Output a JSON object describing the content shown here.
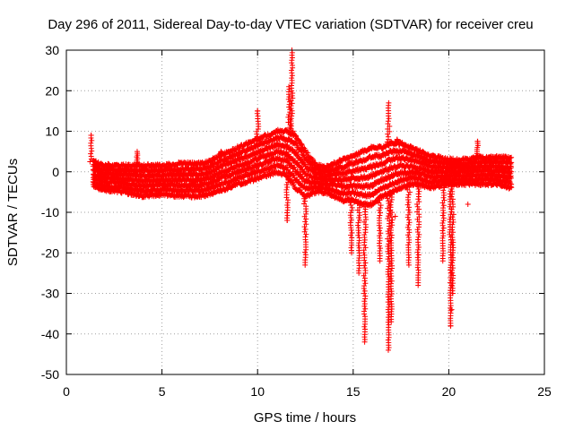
{
  "chart_data": {
    "type": "scatter",
    "title": "Day 296 of 2011, Sidereal Day-to-day VTEC variation (SDTVAR) for receiver creu",
    "xlabel": "GPS time / hours",
    "ylabel": "SDTVAR / TECUs",
    "xlim": [
      0,
      25
    ],
    "ylim": [
      -50,
      30
    ],
    "xticks": [
      0,
      5,
      10,
      15,
      20,
      25
    ],
    "yticks": [
      30,
      20,
      10,
      0,
      -10,
      -20,
      -30,
      -40,
      -50
    ],
    "grid": true,
    "marker": "+",
    "color": "#ff0000",
    "series": [
      {
        "name": "SDTVAR",
        "band": [
          [
            1.4,
            2.5,
            -3.5
          ],
          [
            2.0,
            1.5,
            -4.5
          ],
          [
            3.0,
            1.5,
            -5.0
          ],
          [
            4.0,
            1.5,
            -6.0
          ],
          [
            5.0,
            1.5,
            -5.5
          ],
          [
            6.0,
            2.0,
            -6.0
          ],
          [
            7.0,
            2.0,
            -6.0
          ],
          [
            7.5,
            2.5,
            -5.5
          ],
          [
            8.0,
            4.0,
            -4.5
          ],
          [
            8.5,
            5.0,
            -4.0
          ],
          [
            9.0,
            6.0,
            -3.0
          ],
          [
            9.5,
            7.0,
            -2.5
          ],
          [
            10.0,
            8.0,
            -1.5
          ],
          [
            10.5,
            9.0,
            -1.0
          ],
          [
            11.0,
            10.0,
            0.0
          ],
          [
            11.5,
            10.0,
            -1.0
          ],
          [
            12.0,
            9.0,
            -4.0
          ],
          [
            12.5,
            5.0,
            -6.0
          ],
          [
            13.0,
            2.0,
            -5.0
          ],
          [
            13.5,
            1.0,
            -5.0
          ],
          [
            14.0,
            2.0,
            -6.0
          ],
          [
            14.5,
            3.0,
            -7.0
          ],
          [
            15.0,
            4.0,
            -7.0
          ],
          [
            15.5,
            5.0,
            -8.0
          ],
          [
            16.0,
            6.0,
            -8.0
          ],
          [
            16.5,
            6.0,
            -6.0
          ],
          [
            17.0,
            7.0,
            -5.0
          ],
          [
            17.5,
            7.0,
            -4.0
          ],
          [
            18.0,
            6.0,
            -3.0
          ],
          [
            18.5,
            5.0,
            -3.0
          ],
          [
            19.0,
            4.0,
            -4.0
          ],
          [
            19.5,
            3.5,
            -3.5
          ],
          [
            20.0,
            3.0,
            -3.0
          ],
          [
            20.5,
            3.0,
            -3.0
          ],
          [
            21.0,
            3.0,
            -3.0
          ],
          [
            21.5,
            3.5,
            -3.0
          ],
          [
            22.0,
            3.5,
            -3.0
          ],
          [
            22.5,
            3.5,
            -3.0
          ],
          [
            23.3,
            3.5,
            -4.0
          ]
        ],
        "spikes": [
          [
            11.8,
            30
          ],
          [
            11.65,
            21
          ],
          [
            16.85,
            17
          ],
          [
            17.3,
            8
          ],
          [
            21.5,
            7.5
          ],
          [
            3.7,
            5
          ],
          [
            2.2,
            2
          ],
          [
            8.1,
            5
          ],
          [
            10.0,
            15
          ],
          [
            1.3,
            9
          ]
        ],
        "dips": [
          [
            11.55,
            -12
          ],
          [
            12.5,
            -23
          ],
          [
            14.9,
            -20
          ],
          [
            15.6,
            -42
          ],
          [
            15.3,
            -25
          ],
          [
            16.85,
            -44
          ],
          [
            17.0,
            -37
          ],
          [
            18.4,
            -28
          ],
          [
            17.9,
            -23
          ],
          [
            20.1,
            -38
          ],
          [
            19.7,
            -22
          ],
          [
            16.4,
            -22
          ],
          [
            20.2,
            -30
          ]
        ],
        "outliers": [
          [
            1.3,
            9
          ],
          [
            10.0,
            15
          ],
          [
            11.55,
            -12
          ],
          [
            17.2,
            -11
          ],
          [
            20.1,
            -25
          ],
          [
            20.2,
            -30
          ],
          [
            20.15,
            -34
          ],
          [
            20.1,
            -38
          ],
          [
            21.0,
            -8
          ],
          [
            21.5,
            7.5
          ],
          [
            22.2,
            3
          ],
          [
            19.2,
            -2
          ]
        ]
      }
    ]
  }
}
